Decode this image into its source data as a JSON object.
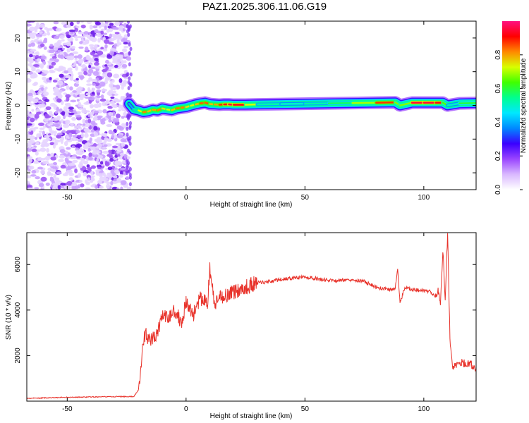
{
  "title": "PAZ1.2025.306.11.06.G19",
  "chart_data": [
    {
      "type": "heatmap",
      "xlabel": "Height of straight line (km)",
      "ylabel": "Frequency (Hz)",
      "xlim": [
        -67,
        122
      ],
      "ylim": [
        -25,
        25
      ],
      "xticks": [
        -50,
        0,
        50,
        100
      ],
      "yticks": [
        -20,
        -10,
        0,
        10,
        20
      ],
      "colorbar": {
        "label": "Normalized spectral amplitude",
        "range": [
          0,
          1
        ],
        "ticks": [
          0.0,
          0.2,
          0.4,
          0.6,
          0.8
        ],
        "colormap": [
          "#ffffff",
          "#d9b8ff",
          "#9a45ff",
          "#3a00ff",
          "#0088ff",
          "#00e8ff",
          "#00ff90",
          "#40ff00",
          "#d8ff00",
          "#ff8800",
          "#ff0000",
          "#ff1080"
        ]
      },
      "noise_region": {
        "x_range": [
          -67,
          -24
        ],
        "y_range": [
          -25,
          25
        ],
        "level": 0.25
      },
      "ridge": {
        "x": [
          -24,
          -22,
          -20,
          -18,
          -16,
          -14,
          -12,
          -10,
          -8,
          -6,
          -4,
          -2,
          0,
          2,
          4,
          6,
          8,
          10,
          12,
          14,
          16,
          18,
          20,
          25,
          30,
          40,
          50,
          60,
          70,
          80,
          88,
          90,
          95,
          100,
          105,
          108,
          110,
          115,
          122
        ],
        "frequency": [
          0.5,
          -1.2,
          -1.5,
          -2.0,
          -1.8,
          -1.3,
          -1.5,
          -0.9,
          -1.2,
          -1.4,
          -0.9,
          -0.7,
          -0.5,
          -0.1,
          0.3,
          0.6,
          0.8,
          0.4,
          0.3,
          0.2,
          0.3,
          0.3,
          0.2,
          0.2,
          0.3,
          0.4,
          0.5,
          0.6,
          0.7,
          0.8,
          0.9,
          0.0,
          0.8,
          0.8,
          0.8,
          0.8,
          0.0,
          0.6,
          0.7
        ],
        "amplitude": [
          0.3,
          0.5,
          0.6,
          0.85,
          0.8,
          0.75,
          0.85,
          0.8,
          0.7,
          0.75,
          0.8,
          0.85,
          0.8,
          0.7,
          0.75,
          0.8,
          0.9,
          0.8,
          0.75,
          0.85,
          0.9,
          0.95,
          0.95,
          0.9,
          0.55,
          0.5,
          0.5,
          0.55,
          0.6,
          0.8,
          0.95,
          0.4,
          0.95,
          0.95,
          0.95,
          0.9,
          0.4,
          0.6,
          0.6
        ]
      }
    },
    {
      "type": "line",
      "xlabel": "Height of straight line (km)",
      "ylabel": "SNR (10 * v/v)",
      "xlim": [
        -67,
        122
      ],
      "ylim": [
        0,
        7400
      ],
      "xticks": [
        -50,
        0,
        50,
        100
      ],
      "yticks": [
        2000,
        4000,
        6000
      ],
      "series": [
        {
          "color": "#e8322a",
          "x": [
            -67,
            -50,
            -40,
            -30,
            -25,
            -22,
            -20,
            -19,
            -18,
            -17,
            -15,
            -12,
            -10,
            -8,
            -5,
            -2,
            0,
            3,
            6,
            9,
            10,
            12,
            15,
            20,
            25,
            30,
            35,
            40,
            45,
            50,
            55,
            60,
            65,
            70,
            75,
            80,
            85,
            88,
            89,
            90,
            92,
            95,
            100,
            103,
            105,
            106,
            107,
            108,
            109,
            110,
            111,
            112,
            115,
            120,
            122
          ],
          "y": [
            120,
            170,
            180,
            200,
            200,
            200,
            500,
            1500,
            2500,
            3000,
            2600,
            3000,
            3800,
            3600,
            4000,
            3500,
            4300,
            3800,
            4500,
            4300,
            5800,
            4200,
            4600,
            4800,
            5000,
            5200,
            5250,
            5350,
            5400,
            5450,
            5380,
            5300,
            5300,
            5350,
            5250,
            5000,
            4900,
            4950,
            5800,
            4300,
            5000,
            4900,
            4850,
            4800,
            4600,
            4900,
            4200,
            6700,
            4500,
            7400,
            2800,
            1500,
            1700,
            1600,
            1450
          ]
        }
      ]
    }
  ]
}
